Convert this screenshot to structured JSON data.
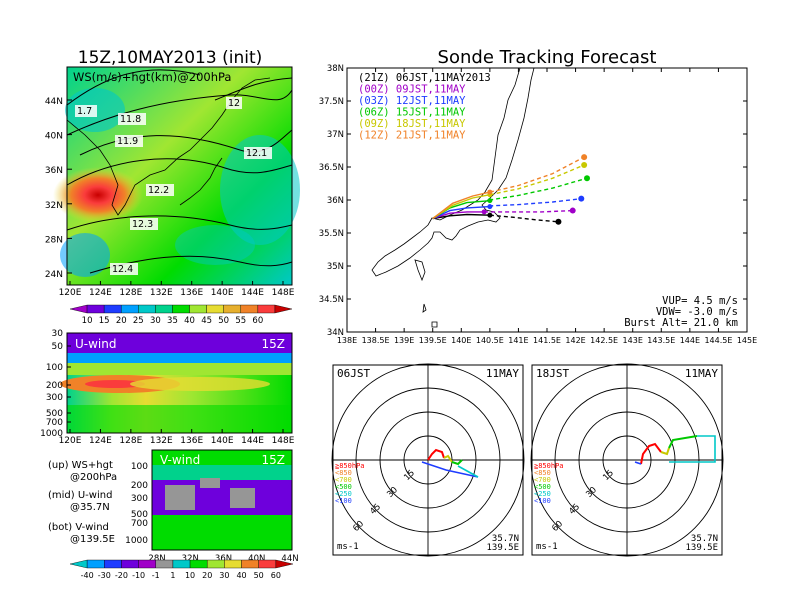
{
  "left": {
    "title": "15Z,10MAY2013 (init)",
    "map": {
      "label": "WS(m/s)+hgt(km)@200hPa",
      "lat_ticks": [
        "44N",
        "40N",
        "36N",
        "32N",
        "28N",
        "24N"
      ],
      "lon_ticks": [
        "120E",
        "124E",
        "128E",
        "132E",
        "136E",
        "140E",
        "144E",
        "148E"
      ],
      "contour_labels": [
        "1.7",
        "11.8",
        "11.9",
        "12",
        "12.1",
        "12.2",
        "12.3",
        "12.4"
      ],
      "colorbar_ticks": [
        "10",
        "15",
        "20",
        "25",
        "30",
        "35",
        "40",
        "45",
        "50",
        "55",
        "60"
      ],
      "colorbar_colors": [
        "#a000c8",
        "#6e00dc",
        "#1e3cff",
        "#00a0ff",
        "#00c8c8",
        "#00d28c",
        "#00dc00",
        "#a0e632",
        "#e6dc32",
        "#e6af2d",
        "#f08228",
        "#fa3c3c",
        "#c80000"
      ]
    },
    "uwind": {
      "label": "U-wind",
      "time": "15Z",
      "levels": [
        "30",
        "50",
        "100",
        "200",
        "300",
        "500",
        "700",
        "1000"
      ],
      "lon_ticks": [
        "120E",
        "124E",
        "128E",
        "132E",
        "136E",
        "140E",
        "144E",
        "148E"
      ]
    },
    "vwind": {
      "label": "V-wind",
      "time": "15Z",
      "levels": [
        "100",
        "200",
        "300",
        "500",
        "700",
        "1000"
      ],
      "lat_ticks": [
        "28N",
        "32N",
        "36N",
        "40N",
        "44N"
      ]
    },
    "legend_lines": [
      {
        "text": "(up) WS+hgt"
      },
      {
        "text": "@200hPa"
      },
      {
        "text": "(mid) U-wind"
      },
      {
        "text": "@35.7N"
      },
      {
        "text": "(bot) V-wind"
      },
      {
        "text": "@139.5E"
      }
    ],
    "wind_colorbar_ticks": [
      "-40",
      "-30",
      "-20",
      "-10",
      "-1",
      "1",
      "10",
      "20",
      "30",
      "40",
      "50",
      "60"
    ]
  },
  "chart_data": {
    "type": "line",
    "title": "Sonde Tracking Forecast",
    "xlim": [
      138,
      145
    ],
    "ylim": [
      34,
      38
    ],
    "x_ticks": [
      "138E",
      "138.5E",
      "139E",
      "139.5E",
      "140E",
      "140.5E",
      "141E",
      "141.5E",
      "142E",
      "142.5E",
      "143E",
      "143.5E",
      "144E",
      "144.5E",
      "145E"
    ],
    "y_ticks": [
      "34N",
      "34.5N",
      "35N",
      "35.5N",
      "36N",
      "36.5N",
      "37N",
      "37.5N",
      "38N"
    ],
    "launch": [
      139.5,
      35.72
    ],
    "series": [
      {
        "name": "(21Z) 06JST,11MAY2013",
        "color": "#000000",
        "points": [
          [
            139.5,
            35.72
          ],
          [
            139.8,
            35.76
          ],
          [
            140.1,
            35.78
          ],
          [
            140.5,
            35.77
          ],
          [
            140.9,
            35.74
          ],
          [
            141.3,
            35.7
          ],
          [
            141.7,
            35.67
          ]
        ],
        "burst": [
          140.5,
          35.77
        ]
      },
      {
        "name": "(00Z) 09JST,11MAY",
        "color": "#a000c8",
        "points": [
          [
            139.5,
            35.72
          ],
          [
            139.8,
            35.8
          ],
          [
            140.1,
            35.82
          ],
          [
            140.5,
            35.82
          ],
          [
            140.9,
            35.82
          ],
          [
            141.4,
            35.82
          ],
          [
            141.95,
            35.84
          ]
        ],
        "burst": [
          140.4,
          35.82
        ]
      },
      {
        "name": "(03Z) 12JST,11MAY",
        "color": "#1e3cff",
        "points": [
          [
            139.5,
            35.72
          ],
          [
            139.8,
            35.84
          ],
          [
            140.1,
            35.88
          ],
          [
            140.5,
            35.91
          ],
          [
            141.0,
            35.93
          ],
          [
            141.6,
            35.97
          ],
          [
            142.1,
            36.02
          ]
        ],
        "burst": [
          140.5,
          35.9
        ]
      },
      {
        "name": "(06Z) 15JST,11MAY",
        "color": "#00c800",
        "points": [
          [
            139.5,
            35.72
          ],
          [
            139.8,
            35.88
          ],
          [
            140.1,
            35.96
          ],
          [
            140.5,
            36.0
          ],
          [
            141.0,
            36.07
          ],
          [
            141.6,
            36.18
          ],
          [
            142.2,
            36.33
          ]
        ],
        "burst": [
          140.5,
          35.99
        ]
      },
      {
        "name": "(09Z) 18JST,11MAY",
        "color": "#c8c800",
        "points": [
          [
            139.5,
            35.72
          ],
          [
            139.85,
            35.92
          ],
          [
            140.2,
            36.03
          ],
          [
            140.5,
            36.08
          ],
          [
            141.0,
            36.17
          ],
          [
            141.6,
            36.33
          ],
          [
            142.15,
            36.53
          ]
        ],
        "burst": [
          140.5,
          36.08
        ]
      },
      {
        "name": "(12Z) 21JST,11MAY",
        "color": "#f08228",
        "points": [
          [
            139.5,
            35.72
          ],
          [
            139.85,
            35.95
          ],
          [
            140.2,
            36.06
          ],
          [
            140.5,
            36.12
          ],
          [
            141.0,
            36.22
          ],
          [
            141.6,
            36.4
          ],
          [
            142.15,
            36.65
          ]
        ],
        "burst": [
          140.5,
          36.12
        ]
      }
    ],
    "annotations": {
      "vup": "VUP=   4.5 m/s",
      "vdw": "VDW= -3.0 m/s",
      "burst": "Burst Alt= 21.0 km"
    }
  },
  "hodographs": [
    {
      "time": "06JST",
      "date": "11MAY",
      "lat": "35.7N",
      "lon": "139.5E",
      "unit": "ms-1",
      "rings": [
        "15",
        "30",
        "45",
        "60"
      ],
      "levels": [
        {
          "label": "≧850hPa",
          "color": "#ff0000"
        },
        {
          "label": "<850",
          "color": "#f08228"
        },
        {
          "label": "<700",
          "color": "#c8c800"
        },
        {
          "label": "<500",
          "color": "#00c800"
        },
        {
          "label": "<250",
          "color": "#00c8c8"
        },
        {
          "label": "<100",
          "color": "#1e3cff"
        }
      ]
    },
    {
      "time": "18JST",
      "date": "11MAY",
      "lat": "35.7N",
      "lon": "139.5E",
      "unit": "ms-1",
      "rings": [
        "15",
        "30",
        "45",
        "60"
      ],
      "levels": [
        {
          "label": "≧850hPa",
          "color": "#ff0000"
        },
        {
          "label": "<850",
          "color": "#f08228"
        },
        {
          "label": "<700",
          "color": "#c8c800"
        },
        {
          "label": "<500",
          "color": "#00c800"
        },
        {
          "label": "<250",
          "color": "#00c8c8"
        },
        {
          "label": "<100",
          "color": "#1e3cff"
        }
      ]
    }
  ]
}
